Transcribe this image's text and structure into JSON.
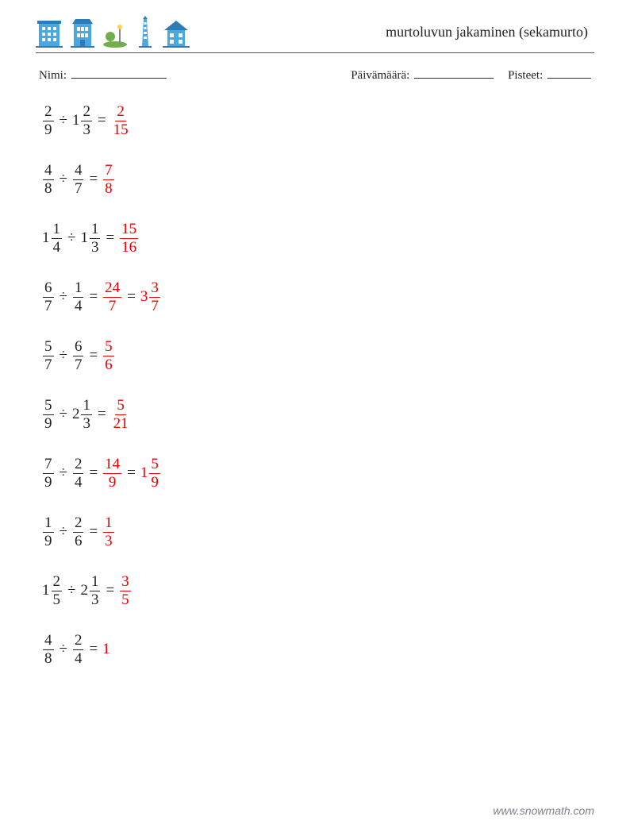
{
  "title": "murtoluvun jakaminen (sekamurto)",
  "labels": {
    "name": "Nimi:",
    "date": "Päivämäärä:",
    "score": "Pisteet:"
  },
  "blank_widths": {
    "name": 120,
    "date": 100,
    "score": 55
  },
  "colors": {
    "text": "#222222",
    "answer": "#e60000",
    "rule": "#555555",
    "footer": "#808090",
    "background": "#ffffff",
    "icon_blue": "#4aa8e0",
    "icon_dark": "#2e7bb8",
    "icon_green": "#6fb04a"
  },
  "typography": {
    "title_fontsize": 18,
    "meta_fontsize": 15,
    "problem_fontsize": 19,
    "footer_fontsize": 14,
    "font_family": "Georgia, 'Times New Roman', serif"
  },
  "operator": "÷",
  "equals": "=",
  "problems": [
    {
      "left": {
        "whole": null,
        "num": "2",
        "den": "9"
      },
      "right": {
        "whole": "1",
        "num": "2",
        "den": "3"
      },
      "answers": [
        {
          "whole": null,
          "num": "2",
          "den": "15"
        }
      ]
    },
    {
      "left": {
        "whole": null,
        "num": "4",
        "den": "8"
      },
      "right": {
        "whole": null,
        "num": "4",
        "den": "7"
      },
      "answers": [
        {
          "whole": null,
          "num": "7",
          "den": "8"
        }
      ]
    },
    {
      "left": {
        "whole": "1",
        "num": "1",
        "den": "4"
      },
      "right": {
        "whole": "1",
        "num": "1",
        "den": "3"
      },
      "answers": [
        {
          "whole": null,
          "num": "15",
          "den": "16"
        }
      ]
    },
    {
      "left": {
        "whole": null,
        "num": "6",
        "den": "7"
      },
      "right": {
        "whole": null,
        "num": "1",
        "den": "4"
      },
      "answers": [
        {
          "whole": null,
          "num": "24",
          "den": "7"
        },
        {
          "whole": "3",
          "num": "3",
          "den": "7"
        }
      ]
    },
    {
      "left": {
        "whole": null,
        "num": "5",
        "den": "7"
      },
      "right": {
        "whole": null,
        "num": "6",
        "den": "7"
      },
      "answers": [
        {
          "whole": null,
          "num": "5",
          "den": "6"
        }
      ]
    },
    {
      "left": {
        "whole": null,
        "num": "5",
        "den": "9"
      },
      "right": {
        "whole": "2",
        "num": "1",
        "den": "3"
      },
      "answers": [
        {
          "whole": null,
          "num": "5",
          "den": "21"
        }
      ]
    },
    {
      "left": {
        "whole": null,
        "num": "7",
        "den": "9"
      },
      "right": {
        "whole": null,
        "num": "2",
        "den": "4"
      },
      "answers": [
        {
          "whole": null,
          "num": "14",
          "den": "9"
        },
        {
          "whole": "1",
          "num": "5",
          "den": "9"
        }
      ]
    },
    {
      "left": {
        "whole": null,
        "num": "1",
        "den": "9"
      },
      "right": {
        "whole": null,
        "num": "2",
        "den": "6"
      },
      "answers": [
        {
          "whole": null,
          "num": "1",
          "den": "3"
        }
      ]
    },
    {
      "left": {
        "whole": "1",
        "num": "2",
        "den": "5"
      },
      "right": {
        "whole": "2",
        "num": "1",
        "den": "3"
      },
      "answers": [
        {
          "whole": null,
          "num": "3",
          "den": "5"
        }
      ]
    },
    {
      "left": {
        "whole": null,
        "num": "4",
        "den": "8"
      },
      "right": {
        "whole": null,
        "num": "2",
        "den": "4"
      },
      "answers": [
        {
          "whole": "1",
          "num": null,
          "den": null
        }
      ]
    }
  ],
  "footer": "www.snowmath.com",
  "icons": [
    {
      "name": "building-a-icon",
      "type": "building"
    },
    {
      "name": "building-b-icon",
      "type": "building"
    },
    {
      "name": "park-icon",
      "type": "park"
    },
    {
      "name": "tower-icon",
      "type": "tower"
    },
    {
      "name": "house-icon",
      "type": "house"
    }
  ]
}
